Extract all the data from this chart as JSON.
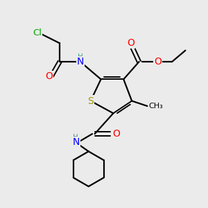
{
  "bg_color": "#ebebeb",
  "atom_colors": {
    "C": "#000000",
    "H": "#4a9a8a",
    "N": "#0000ff",
    "O": "#ff0000",
    "S": "#999900",
    "Cl": "#00aa00"
  },
  "figsize": [
    3.0,
    3.0
  ],
  "dpi": 100
}
